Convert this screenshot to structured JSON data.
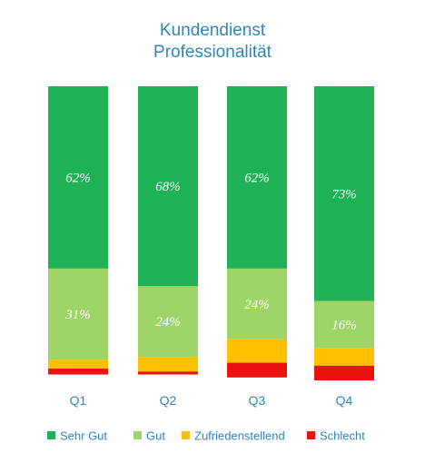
{
  "chart_data": {
    "type": "bar",
    "stacked": true,
    "title": [
      "Kundendienst",
      "Professionalität"
    ],
    "categories": [
      "Q1",
      "Q2",
      "Q3",
      "Q4"
    ],
    "ylim": [
      0,
      100
    ],
    "grid": false,
    "legend_position": "bottom",
    "series": [
      {
        "name": "Sehr Gut",
        "color": "#1fb156",
        "values": [
          62,
          68,
          62,
          73
        ],
        "labels": [
          "62%",
          "68%",
          "62%",
          "73%"
        ]
      },
      {
        "name": "Gut",
        "color": "#9ed468",
        "values": [
          31,
          24,
          24,
          16
        ],
        "labels": [
          "31%",
          "24%",
          "24%",
          "16%"
        ]
      },
      {
        "name": "Zufriedenstellend",
        "color": "#ffc000",
        "values": [
          3,
          5,
          8,
          6
        ],
        "labels": [
          "",
          "",
          "",
          ""
        ]
      },
      {
        "name": "Schlecht",
        "color": "#ee1111",
        "values": [
          2,
          1,
          5,
          5
        ],
        "labels": [
          "",
          "",
          "",
          ""
        ]
      }
    ]
  }
}
